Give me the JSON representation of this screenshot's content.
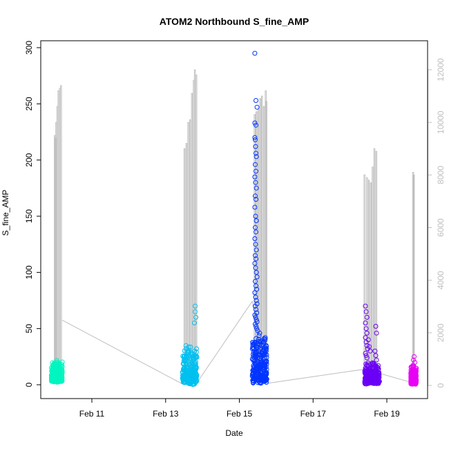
{
  "chart_data": {
    "type": "scatter",
    "title": "ATOM2 Northbound S_fine_AMP",
    "xlabel": "Date",
    "ylabel": "S_fine_AMP",
    "x_ticks": [
      {
        "label": "Feb 11",
        "day": 11.0
      },
      {
        "label": "Feb 13",
        "day": 13.0
      },
      {
        "label": "Feb 15",
        "day": 15.0
      },
      {
        "label": "Feb 17",
        "day": 17.0
      },
      {
        "label": "Feb 19",
        "day": 19.0
      }
    ],
    "xlim_days": [
      9.8,
      21.0
    ],
    "ylim": [
      0,
      310
    ],
    "y_ticks": [
      0,
      50,
      100,
      150,
      200,
      250,
      300
    ],
    "y2lim": [
      0,
      12400
    ],
    "y2_ticks": [
      0,
      2000,
      4000,
      6000,
      8000,
      10000,
      12000
    ],
    "secondary_axis_color": "#bebebe",
    "line_color": "#bebebe",
    "grid": false,
    "point_clusters": [
      {
        "color": "#00f5c0",
        "x_start": 9.9,
        "x_end": 10.2,
        "y_min": 2,
        "y_max": 22,
        "outliers": []
      },
      {
        "color": "#00c0f0",
        "x_start": 13.45,
        "x_end": 13.85,
        "y_min": 0,
        "y_max": 35,
        "outliers": [
          [
            13.8,
            70
          ],
          [
            13.8,
            65
          ],
          [
            13.82,
            60
          ],
          [
            13.78,
            55
          ]
        ]
      },
      {
        "color": "#0035ff",
        "x_start": 15.35,
        "x_end": 15.75,
        "y_min": 0,
        "y_max": 45,
        "outliers": [
          [
            15.42,
            295
          ],
          [
            15.45,
            253
          ],
          [
            15.48,
            247
          ],
          [
            15.42,
            233
          ],
          [
            15.45,
            231
          ],
          [
            15.42,
            220
          ],
          [
            15.43,
            218
          ],
          [
            15.44,
            212
          ],
          [
            15.45,
            206
          ],
          [
            15.46,
            203
          ],
          [
            15.43,
            196
          ],
          [
            15.45,
            190
          ],
          [
            15.42,
            185
          ],
          [
            15.44,
            180
          ],
          [
            15.46,
            175
          ],
          [
            15.43,
            168
          ],
          [
            15.45,
            165
          ],
          [
            15.42,
            158
          ],
          [
            15.44,
            150
          ],
          [
            15.46,
            146
          ],
          [
            15.43,
            140
          ],
          [
            15.45,
            136
          ],
          [
            15.42,
            130
          ],
          [
            15.44,
            125
          ],
          [
            15.46,
            120
          ],
          [
            15.43,
            115
          ],
          [
            15.45,
            112
          ],
          [
            15.42,
            108
          ],
          [
            15.44,
            104
          ],
          [
            15.46,
            100
          ],
          [
            15.48,
            96
          ],
          [
            15.43,
            92
          ],
          [
            15.45,
            88
          ],
          [
            15.47,
            85
          ],
          [
            15.42,
            82
          ],
          [
            15.44,
            78
          ],
          [
            15.46,
            75
          ],
          [
            15.48,
            72
          ],
          [
            15.43,
            70
          ],
          [
            15.45,
            67
          ],
          [
            15.47,
            64
          ],
          [
            15.42,
            62
          ],
          [
            15.44,
            60
          ],
          [
            15.46,
            58
          ],
          [
            15.48,
            56
          ],
          [
            15.43,
            54
          ],
          [
            15.45,
            52
          ],
          [
            15.47,
            50
          ],
          [
            15.5,
            48
          ],
          [
            15.55,
            46
          ],
          [
            15.7,
            42
          ]
        ]
      },
      {
        "color": "#6a00f5",
        "x_start": 18.4,
        "x_end": 18.8,
        "y_min": 0,
        "y_max": 20,
        "outliers": [
          [
            18.42,
            70
          ],
          [
            18.44,
            65
          ],
          [
            18.46,
            60
          ],
          [
            18.42,
            55
          ],
          [
            18.44,
            50
          ],
          [
            18.46,
            46
          ],
          [
            18.42,
            42
          ],
          [
            18.44,
            38
          ],
          [
            18.46,
            35
          ],
          [
            18.48,
            32
          ],
          [
            18.42,
            28
          ],
          [
            18.44,
            26
          ],
          [
            18.46,
            24
          ],
          [
            18.7,
            52
          ],
          [
            18.72,
            46
          ],
          [
            18.68,
            30
          ],
          [
            18.7,
            26
          ],
          [
            18.72,
            22
          ],
          [
            18.5,
            40
          ],
          [
            18.52,
            34
          ],
          [
            18.55,
            30
          ]
        ]
      },
      {
        "color": "#e800f5",
        "x_start": 19.65,
        "x_end": 19.8,
        "y_min": 0,
        "y_max": 18,
        "outliers": [
          [
            19.74,
            25
          ],
          [
            19.72,
            22
          ],
          [
            19.76,
            20
          ]
        ]
      }
    ],
    "secondary_line": {
      "baseline": [
        [
          10.2,
          2480
        ],
        [
          13.45,
          60
        ],
        [
          13.85,
          100
        ],
        [
          15.35,
          3200
        ],
        [
          15.75,
          80
        ],
        [
          18.4,
          620
        ],
        [
          19.65,
          120
        ],
        [
          19.8,
          140
        ]
      ],
      "spike_groups": [
        {
          "x": [
            9.98,
            10.0,
            10.02,
            10.05,
            10.08,
            10.12,
            10.15
          ],
          "peaks": [
            9500,
            9400,
            10000,
            10600,
            11200,
            11300,
            11400
          ]
        },
        {
          "x": [
            13.5,
            13.55,
            13.6,
            13.65,
            13.7,
            13.75,
            13.78,
            13.82
          ],
          "peaks": [
            9000,
            9200,
            10000,
            10100,
            11100,
            11600,
            12000,
            11800
          ]
        },
        {
          "x": [
            15.4,
            15.45,
            15.5,
            15.55,
            15.6,
            15.65,
            15.7,
            15.72
          ],
          "peaks": [
            10300,
            10400,
            10500,
            10900,
            11000,
            10600,
            11200,
            10800
          ]
        },
        {
          "x": [
            18.38,
            18.45,
            18.5,
            18.55,
            18.6,
            18.65,
            18.7
          ],
          "peaks": [
            8000,
            7900,
            7800,
            7700,
            8300,
            9000,
            8900
          ]
        },
        {
          "x": [
            19.7,
            19.72
          ],
          "peaks": [
            8100,
            8000
          ]
        }
      ]
    }
  }
}
